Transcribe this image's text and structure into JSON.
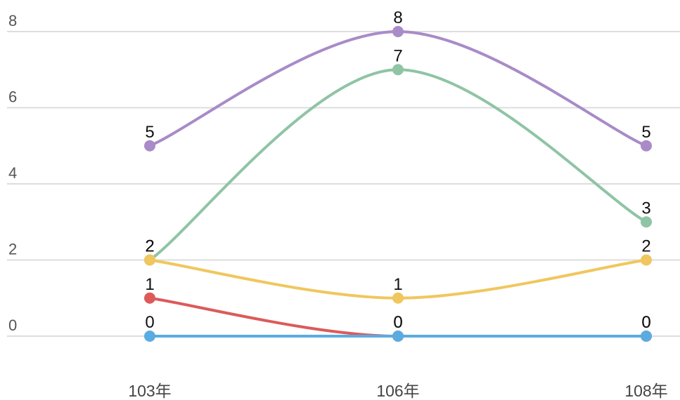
{
  "chart_data": {
    "type": "line",
    "title": "",
    "xlabel": "",
    "ylabel": "",
    "categories": [
      "103年",
      "106年",
      "108年"
    ],
    "ylim": [
      0,
      8
    ],
    "y_ticks": [
      "0",
      "2",
      "4",
      "6",
      "8"
    ],
    "grid": true,
    "curve": "smooth",
    "series": [
      {
        "color": "#a98bc8",
        "values": [
          5,
          8,
          5
        ]
      },
      {
        "color": "#8fc4a5",
        "values": [
          2,
          7,
          3
        ]
      },
      {
        "color": "#f0c75e",
        "values": [
          2,
          1,
          2
        ]
      },
      {
        "color": "#dc5a5a",
        "values": [
          1,
          0,
          0
        ]
      },
      {
        "color": "#5aace0",
        "values": [
          0,
          0,
          0
        ]
      }
    ]
  }
}
